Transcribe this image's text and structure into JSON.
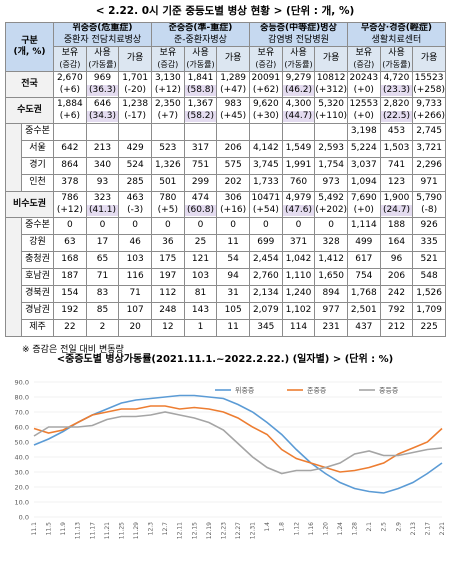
{
  "title": "< 2.22. 0시 기준 중등도별 병상 현황 > (단위 : 개, %)",
  "table": {
    "corner": [
      "구분",
      "(개, %)"
    ],
    "groups": [
      {
        "name": "위중증(危重症)",
        "facility": "중환자 전담치료병상"
      },
      {
        "name": "준중증(準-重症)",
        "facility": "준-중환자병상"
      },
      {
        "name": "중등증(中等症)병상",
        "facility": "감염병 전담병원"
      },
      {
        "name": "무증상·경증(輕症)",
        "facility": "생활치료센터"
      }
    ],
    "subheaders": [
      [
        "보유",
        "(증감)"
      ],
      [
        "사용",
        "(가동률)"
      ],
      [
        "가용"
      ]
    ],
    "rows": [
      {
        "label": "전국",
        "cells": [
          [
            "2,670",
            "(+6)"
          ],
          [
            "969",
            "(36.3)"
          ],
          [
            "1,701",
            "(-20)"
          ],
          [
            "3,130",
            "(+12)"
          ],
          [
            "1,841",
            "(58.8)"
          ],
          [
            "1,289",
            "(+47)"
          ],
          [
            "20091",
            "(+62)"
          ],
          [
            "9,279",
            "(46.2)"
          ],
          [
            "10812",
            "(+312)"
          ],
          [
            "20243",
            "(+0)"
          ],
          [
            "4,720",
            "(23.3)"
          ],
          [
            "15523",
            "(+258)"
          ]
        ]
      },
      {
        "label": "수도권",
        "cells": [
          [
            "1,884",
            "(+6)"
          ],
          [
            "646",
            "(34.3)"
          ],
          [
            "1,238",
            "(-17)"
          ],
          [
            "2,350",
            "(+7)"
          ],
          [
            "1,367",
            "(58.2)"
          ],
          [
            "983",
            "(+45)"
          ],
          [
            "9,620",
            "(+30)"
          ],
          [
            "4,300",
            "(44.7)"
          ],
          [
            "5,320",
            "(+110)"
          ],
          [
            "12553",
            "(+0)"
          ],
          [
            "2,820",
            "(22.5)"
          ],
          [
            "9,733",
            "(+266)"
          ]
        ],
        "children": [
          {
            "label": "중수본",
            "cells": [
              null,
              null,
              null,
              null,
              null,
              null,
              null,
              null,
              null,
              "3,198",
              "453",
              "2,745"
            ]
          },
          {
            "label": "서울",
            "cells": [
              "642",
              "213",
              "429",
              "523",
              "317",
              "206",
              "4,142",
              "1,549",
              "2,593",
              "5,224",
              "1,503",
              "3,721"
            ]
          },
          {
            "label": "경기",
            "cells": [
              "864",
              "340",
              "524",
              "1,326",
              "751",
              "575",
              "3,745",
              "1,991",
              "1,754",
              "3,037",
              "741",
              "2,296"
            ]
          },
          {
            "label": "인천",
            "cells": [
              "378",
              "93",
              "285",
              "501",
              "299",
              "202",
              "1,733",
              "760",
              "973",
              "1,094",
              "123",
              "971"
            ]
          }
        ]
      },
      {
        "label": "비수도권",
        "cells": [
          [
            "786",
            "(+12)"
          ],
          [
            "323",
            "(41.1)"
          ],
          [
            "463",
            "(-3)"
          ],
          [
            "780",
            "(+5)"
          ],
          [
            "474",
            "(60.8)"
          ],
          [
            "306",
            "(+16)"
          ],
          [
            "10471",
            "(+54)"
          ],
          [
            "4,979",
            "(47.6)"
          ],
          [
            "5,492",
            "(+202)"
          ],
          [
            "7,690",
            "(+0)"
          ],
          [
            "1,900",
            "(24.7)"
          ],
          [
            "5,790",
            "(-8)"
          ]
        ],
        "children": [
          {
            "label": "중수본",
            "cells": [
              "0",
              "0",
              "0",
              "0",
              "0",
              "0",
              "0",
              "0",
              "0",
              "1,114",
              "188",
              "926"
            ]
          },
          {
            "label": "강원",
            "cells": [
              "63",
              "17",
              "46",
              "36",
              "25",
              "11",
              "699",
              "371",
              "328",
              "499",
              "164",
              "335"
            ]
          },
          {
            "label": "충청권",
            "cells": [
              "168",
              "65",
              "103",
              "175",
              "121",
              "54",
              "2,454",
              "1,042",
              "1,412",
              "617",
              "96",
              "521"
            ]
          },
          {
            "label": "호남권",
            "cells": [
              "187",
              "71",
              "116",
              "197",
              "103",
              "94",
              "2,760",
              "1,110",
              "1,650",
              "754",
              "206",
              "548"
            ]
          },
          {
            "label": "경북권",
            "cells": [
              "154",
              "83",
              "71",
              "112",
              "81",
              "31",
              "2,134",
              "1,240",
              "894",
              "1,768",
              "242",
              "1,526"
            ]
          },
          {
            "label": "경남권",
            "cells": [
              "192",
              "85",
              "107",
              "248",
              "143",
              "105",
              "2,079",
              "1,102",
              "977",
              "2,501",
              "792",
              "1,709"
            ]
          },
          {
            "label": "제주",
            "cells": [
              "22",
              "2",
              "20",
              "12",
              "1",
              "11",
              "345",
              "114",
              "231",
              "437",
              "212",
              "225"
            ]
          }
        ]
      }
    ]
  },
  "note": "※ 증감은 전일 대비 변동량",
  "chart_data": {
    "type": "line",
    "title": "<중증도별 병상가동률(2021.11.1.~2022.2.22.) (일자별) > (단위 : %)",
    "x": [
      "11.1",
      "11.5",
      "11.9",
      "11.13",
      "11.17",
      "11.21",
      "11.25",
      "11.29",
      "12.3",
      "12.7",
      "12.11",
      "12.15",
      "12.19",
      "12.23",
      "12.27",
      "12.31",
      "1.4",
      "1.8",
      "1.12",
      "1.16",
      "1.20",
      "1.24",
      "1.28",
      "2.1",
      "2.5",
      "2.9",
      "2.13",
      "2.17",
      "2.21"
    ],
    "series": [
      {
        "name": "위중증",
        "color": "#5b9bd5",
        "values": [
          48,
          52,
          57,
          63,
          68,
          72,
          76,
          78,
          79,
          80,
          81,
          81,
          80,
          79,
          75,
          70,
          63,
          55,
          45,
          36,
          29,
          23,
          19,
          17,
          16,
          19,
          23,
          29,
          36
        ]
      },
      {
        "name": "준중증",
        "color": "#ed7d31",
        "values": [
          59,
          56,
          58,
          63,
          68,
          70,
          72,
          72,
          74,
          74,
          72,
          73,
          72,
          70,
          66,
          60,
          55,
          45,
          39,
          36,
          33,
          30,
          31,
          33,
          36,
          42,
          46,
          50,
          59
        ]
      },
      {
        "name": "중등증",
        "color": "#a5a5a5",
        "values": [
          54,
          60,
          60,
          60,
          61,
          65,
          67,
          67,
          68,
          70,
          68,
          66,
          63,
          58,
          49,
          40,
          33,
          29,
          31,
          31,
          33,
          36,
          42,
          44,
          41,
          41,
          43,
          45,
          46
        ]
      }
    ],
    "ylim": [
      0,
      90
    ],
    "yticks": [
      {
        "value": 0,
        "label": "0.0"
      },
      {
        "value": 10,
        "label": "10.0"
      },
      {
        "value": 20,
        "label": "20.0"
      },
      {
        "value": 30,
        "label": "30.0"
      },
      {
        "value": 40,
        "label": "40.0"
      },
      {
        "value": 50,
        "label": "50.0"
      },
      {
        "value": 60,
        "label": "60.0"
      },
      {
        "value": 70,
        "label": "70.0"
      },
      {
        "value": 80,
        "label": "80.0"
      },
      {
        "value": 90,
        "label": "90.0"
      }
    ],
    "grid": true,
    "legend": "top"
  }
}
